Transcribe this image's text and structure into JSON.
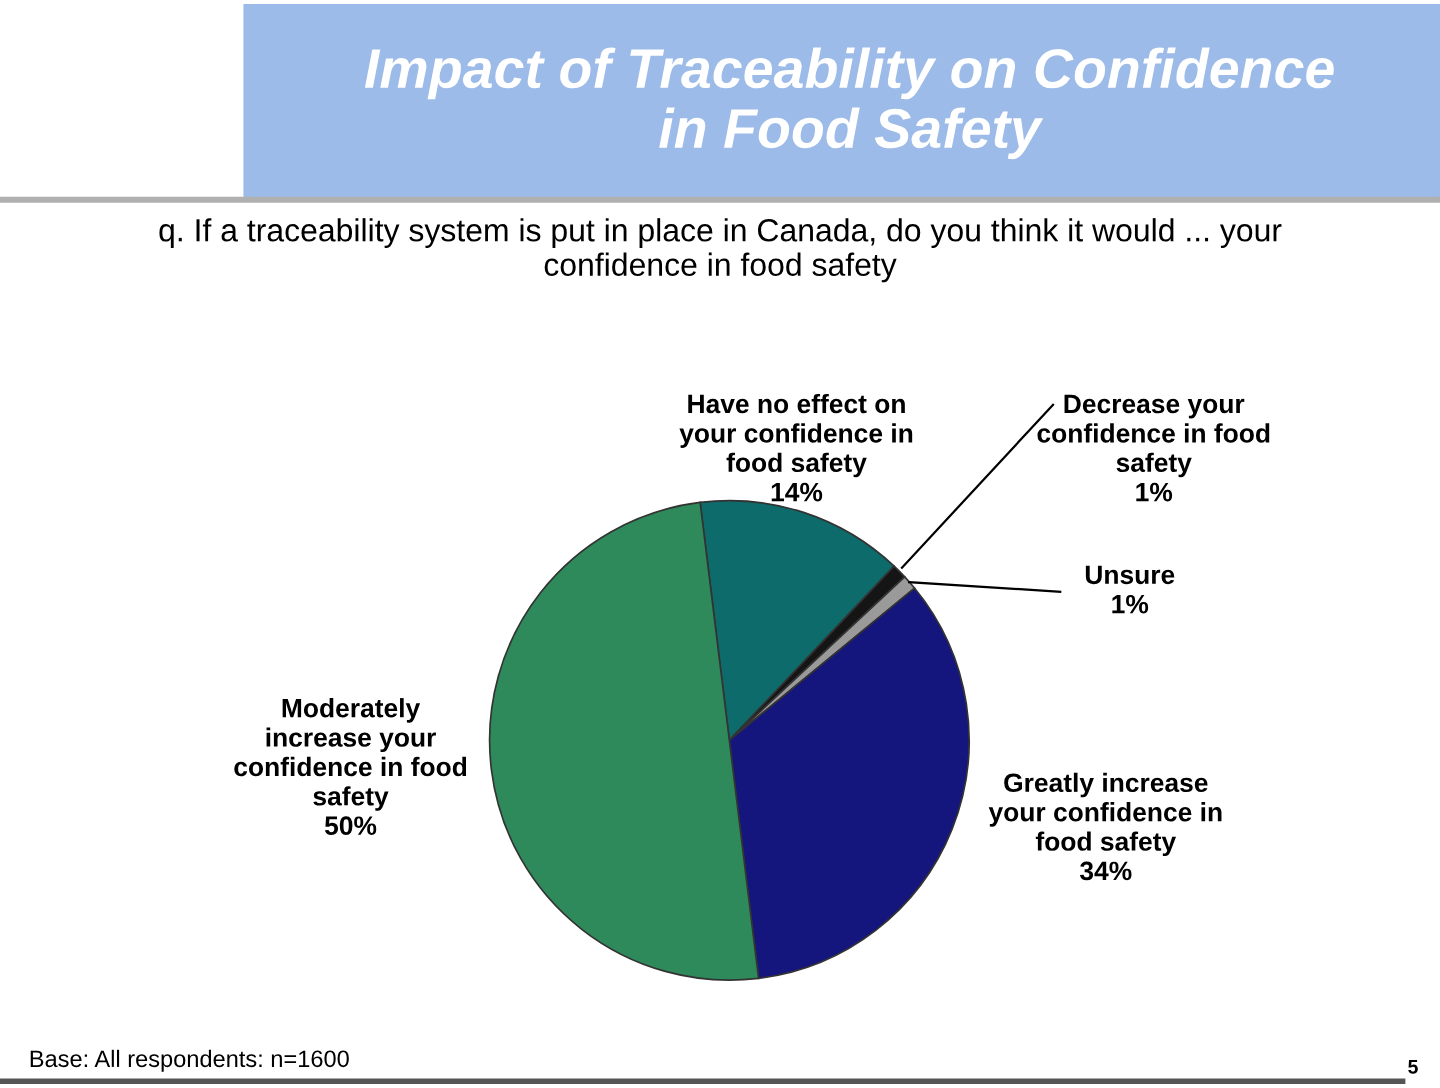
{
  "chart_data": {
    "type": "pie",
    "title": "Impact of Traceability on Confidence\nin Food Safety",
    "subtitle": "q. If a traceability system is put in place in Canada, do you think it would ... your\nconfidence in food safety",
    "categories": [
      "Have no effect on\nyour confidence in\nfood safety",
      "Decrease your\nconfidence in food\nsafety",
      "Unsure",
      "Greatly increase\nyour confidence in\nfood safety",
      "Moderately\nincrease your\nconfidence in food\nsafety"
    ],
    "values": [
      14,
      1,
      1,
      34,
      50
    ],
    "colors": [
      "#0d6b6b",
      "#151515",
      "#9a9a9a",
      "#15157e",
      "#2e8a5a"
    ],
    "value_labels": [
      "14%",
      "1%",
      "1%",
      "34%",
      "50%"
    ],
    "annotations": [
      "Base: All respondents: n=1600",
      "5"
    ]
  }
}
